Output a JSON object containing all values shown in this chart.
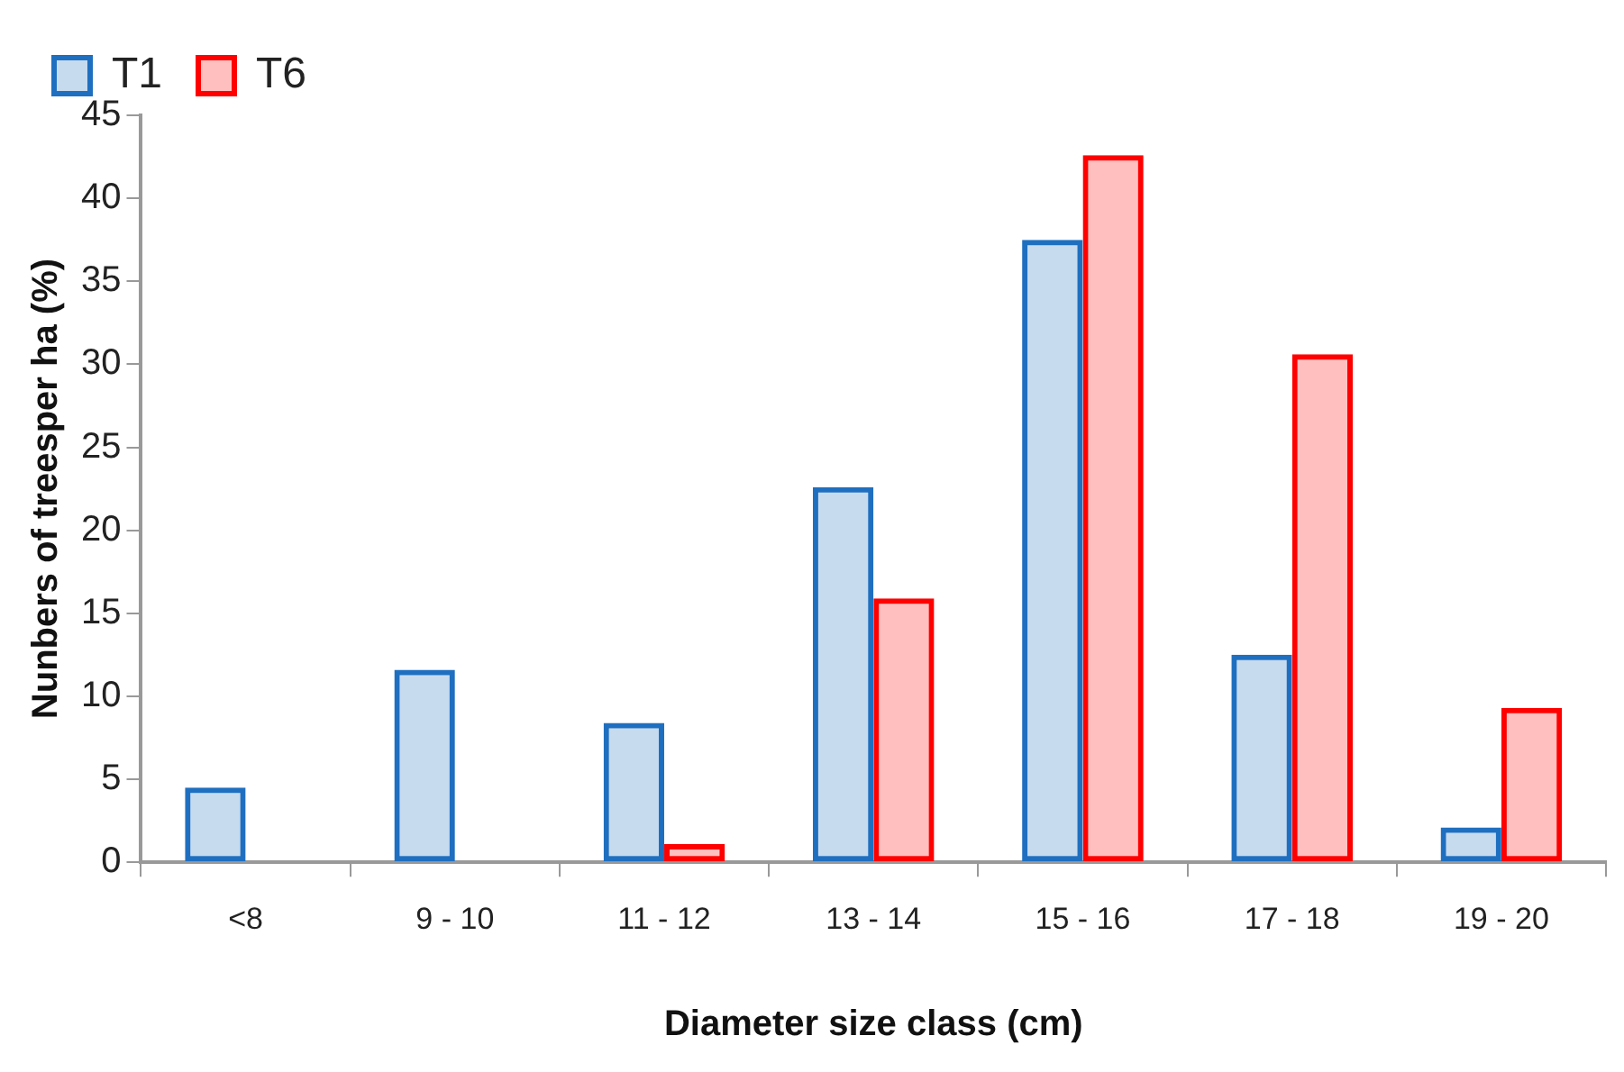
{
  "chart_data": {
    "type": "bar",
    "xlabel": "Diameter size class (cm)",
    "ylabel": "Nunbers of treesper ha (%)",
    "categories": [
      "<8",
      "9 - 10",
      "11 - 12",
      "13 - 14",
      "15 - 16",
      "17 - 18",
      "19 - 20"
    ],
    "series": [
      {
        "name": "T1",
        "color": "#1f6fc0",
        "values": [
          4.5,
          11.6,
          8.4,
          22.6,
          37.5,
          12.5,
          2.1
        ]
      },
      {
        "name": "T6",
        "color": "#ff0000",
        "values": [
          null,
          null,
          1.1,
          15.9,
          42.6,
          30.6,
          9.3
        ]
      }
    ],
    "ylim": [
      0,
      45
    ],
    "yticks": [
      0,
      5,
      10,
      15,
      20,
      25,
      30,
      35,
      40,
      45
    ],
    "grid": false,
    "legend": "top left"
  }
}
